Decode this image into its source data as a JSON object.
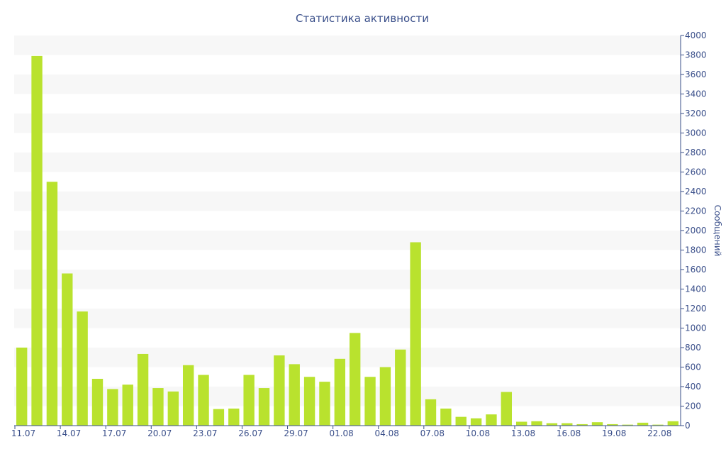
{
  "chart_data": {
    "type": "bar",
    "title": "Статистика активности",
    "xlabel": "",
    "ylabel": "Сообщений",
    "ylim": [
      0,
      4000
    ],
    "y_ticks": [
      0,
      200,
      400,
      600,
      800,
      1000,
      1200,
      1400,
      1600,
      1800,
      2000,
      2200,
      2400,
      2600,
      2800,
      3000,
      3200,
      3400,
      3600,
      3800,
      4000
    ],
    "y_axis_side": "right",
    "grid": "alternating horizontal bands",
    "colors": {
      "bar": "#b9e22e",
      "band": "#f7f7f7",
      "text": "#3a4f8a"
    },
    "categories": [
      "11.07",
      "12.07",
      "13.07",
      "14.07",
      "15.07",
      "16.07",
      "17.07",
      "18.07",
      "19.07",
      "20.07",
      "21.07",
      "22.07",
      "23.07",
      "24.07",
      "25.07",
      "26.07",
      "27.07",
      "28.07",
      "29.07",
      "30.07",
      "31.07",
      "01.08",
      "02.08",
      "03.08",
      "04.08",
      "05.08",
      "06.08",
      "07.08",
      "08.08",
      "09.08",
      "10.08",
      "11.08",
      "12.08",
      "13.08",
      "14.08",
      "15.08",
      "16.08",
      "17.08",
      "18.08",
      "19.08",
      "20.08",
      "21.08",
      "22.08",
      "23.08"
    ],
    "x_tick_labels": [
      "11.07",
      "14.07",
      "17.07",
      "20.07",
      "23.07",
      "26.07",
      "29.07",
      "01.08",
      "04.08",
      "07.08",
      "10.08",
      "13.08",
      "16.08",
      "19.08",
      "22.08"
    ],
    "values": [
      800,
      3790,
      2500,
      1560,
      1170,
      480,
      375,
      420,
      735,
      385,
      350,
      620,
      520,
      170,
      175,
      520,
      385,
      720,
      630,
      500,
      450,
      685,
      950,
      500,
      600,
      780,
      1880,
      270,
      175,
      90,
      75,
      115,
      345,
      40,
      45,
      25,
      25,
      15,
      35,
      15,
      10,
      30,
      10,
      45
    ]
  }
}
